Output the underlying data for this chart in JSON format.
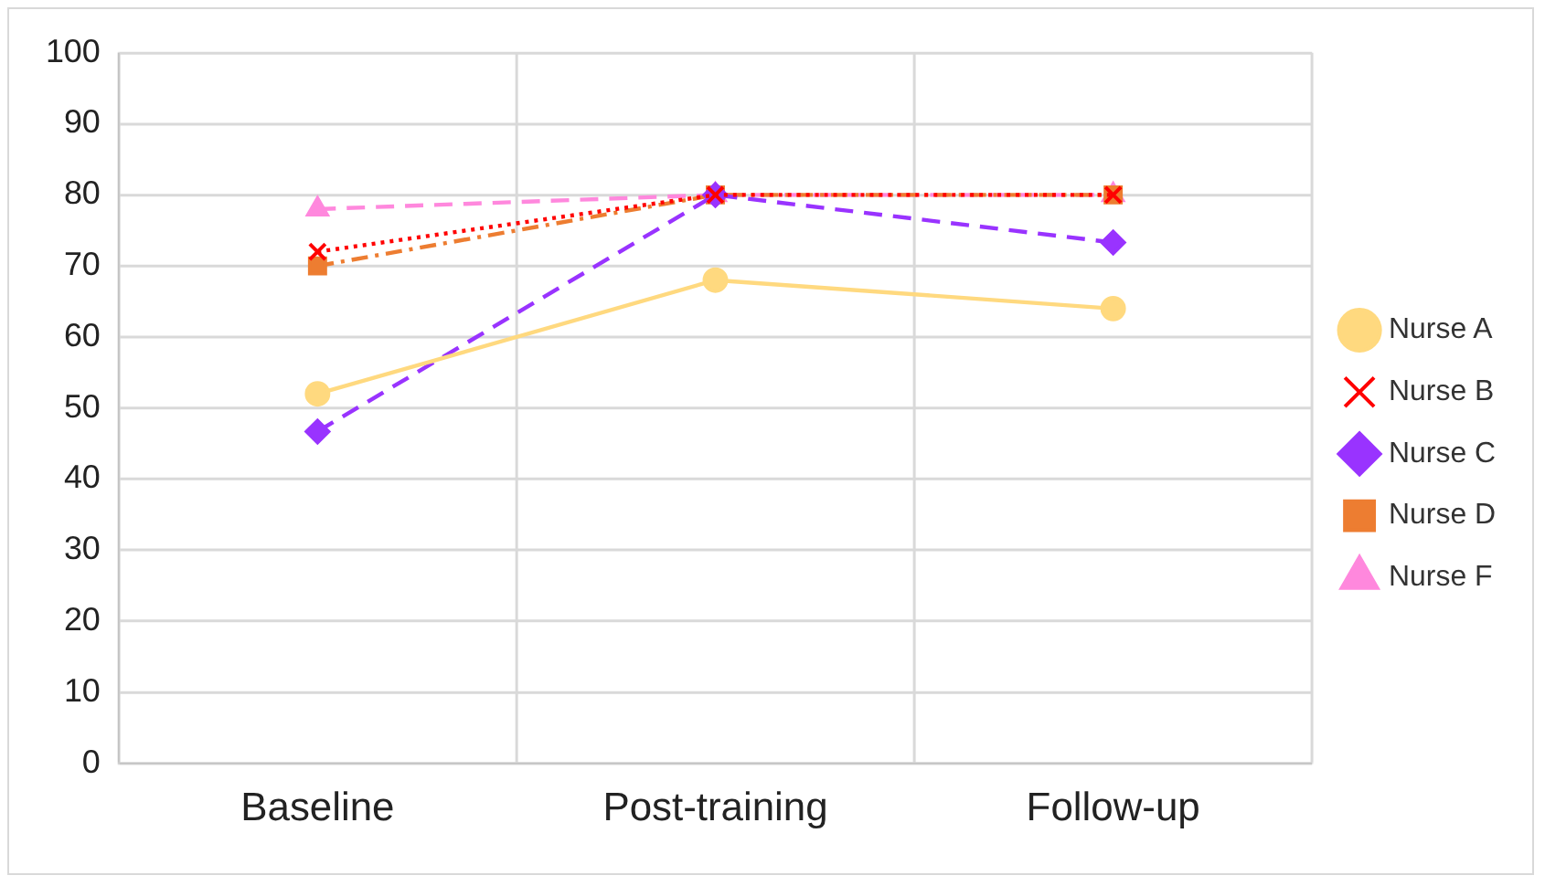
{
  "chart_data": {
    "type": "line",
    "categories": [
      "Baseline",
      "Post-training",
      "Follow-up"
    ],
    "ylim": [
      0,
      100
    ],
    "yticks": [
      0,
      10,
      20,
      30,
      40,
      50,
      60,
      70,
      80,
      90,
      100
    ],
    "grid": true,
    "legend": "right",
    "series": [
      {
        "name": "Nurse A",
        "color": "#ffd97f",
        "values": [
          52,
          68,
          64
        ],
        "marker": "circle",
        "line_style": "solid"
      },
      {
        "name": "Nurse B",
        "color": "#ff0000",
        "values": [
          72,
          80,
          80
        ],
        "marker": "cross",
        "line_style": "dotted"
      },
      {
        "name": "Nurse C",
        "color": "#9933ff",
        "values": [
          46.7,
          80,
          73.3
        ],
        "marker": "diamond",
        "line_style": "dashed"
      },
      {
        "name": "Nurse D",
        "color": "#ed7d31",
        "values": [
          70,
          80,
          80
        ],
        "marker": "square",
        "line_style": "dashdot"
      },
      {
        "name": "Nurse F",
        "color": "#ff88dd",
        "values": [
          78,
          80,
          80
        ],
        "marker": "triangle",
        "line_style": "dashed"
      }
    ]
  }
}
